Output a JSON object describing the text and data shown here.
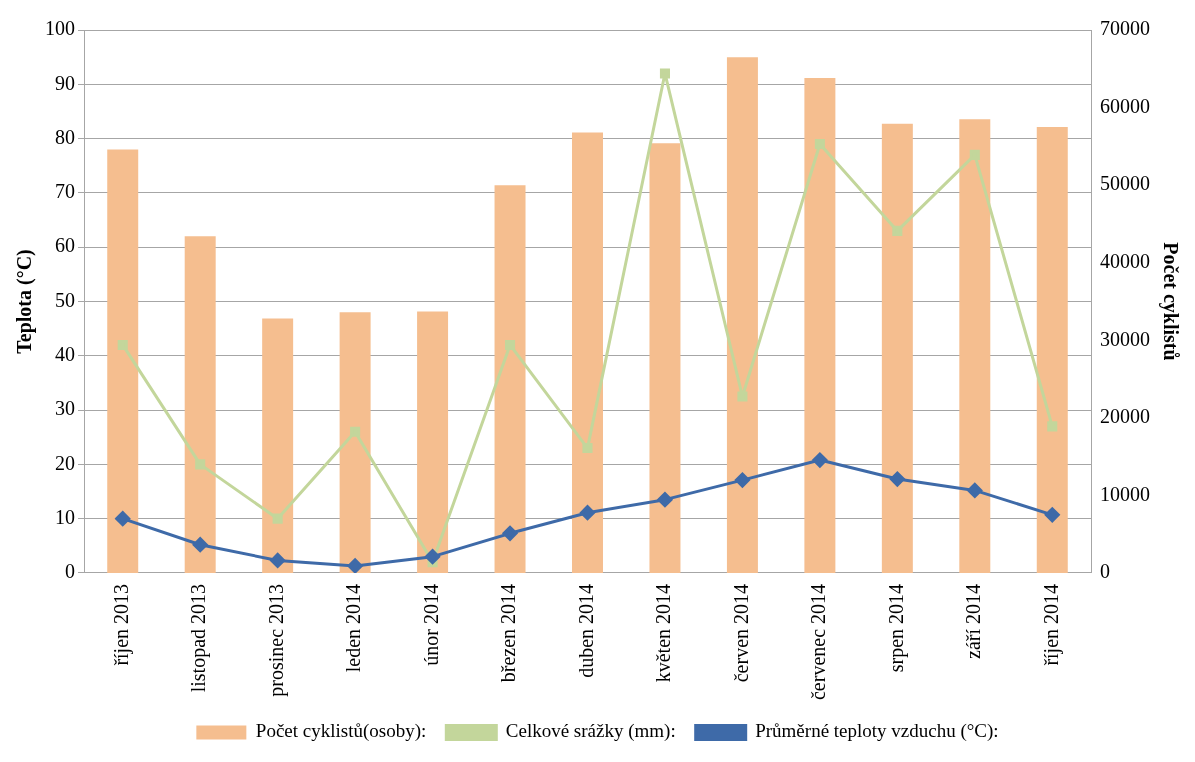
{
  "chart_data": {
    "type": "bar",
    "ylabel": "Teplota (°C)",
    "y2label": "Počet cyklistů",
    "categories": [
      "říjen 2013",
      "listopad 2013",
      "prosinec 2013",
      "leden 2014",
      "únor 2014",
      "březen 2014",
      "duben 2014",
      "květen 2014",
      "červen 2014",
      "červenec 2014",
      "srpen 2014",
      "září 2014",
      "říjen 2014"
    ],
    "series": [
      {
        "name": "Počet cyklistů(osoby):",
        "axis": "y2",
        "color": "#f5be8f",
        "values": [
          54600,
          43400,
          32800,
          33600,
          33700,
          50000,
          56800,
          55400,
          66500,
          63800,
          57900,
          58500,
          57500
        ]
      },
      {
        "name": "Celkové srážky (mm):",
        "type": "line",
        "marker": "square",
        "color": "#c3d69b",
        "values": [
          42,
          20,
          10,
          26,
          2,
          42,
          23,
          92,
          32.5,
          79,
          63,
          77,
          27
        ]
      },
      {
        "name": "Průměrné teploty vzduchu (°C):",
        "type": "line",
        "marker": "diamond",
        "color": "#3e6aa8",
        "values": [
          10,
          5.2,
          2.3,
          1.3,
          3,
          7.3,
          11.1,
          13.5,
          17.1,
          20.8,
          17.3,
          15.2,
          10.7
        ]
      }
    ],
    "ylim": [
      0,
      100
    ],
    "yticks": [
      0,
      10,
      20,
      30,
      40,
      50,
      60,
      70,
      80,
      90,
      100
    ],
    "y2lim": [
      0,
      70000
    ],
    "y2ticks": [
      0,
      10000,
      20000,
      30000,
      40000,
      50000,
      60000,
      70000
    ],
    "grid": "y",
    "legend": "bottom"
  }
}
